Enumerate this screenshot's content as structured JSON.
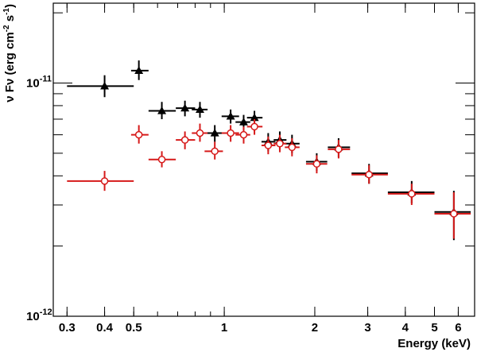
{
  "chart_data": {
    "type": "scatter",
    "title": "",
    "xlabel": "Energy (keV)",
    "ylabel_main": "ν Fν (erg cm",
    "ylabel_exp1": "-2",
    "ylabel_mid": " s",
    "ylabel_exp2": "-1",
    "ylabel_end": ")",
    "x_scale": "log",
    "y_scale": "log",
    "xlim": [
      0.27,
      6.8
    ],
    "ylim": [
      1e-12,
      2.2e-11
    ],
    "x_ticks": [
      {
        "value": 0.3,
        "label": "0.3"
      },
      {
        "value": 0.4,
        "label": "0.4"
      },
      {
        "value": 0.5,
        "label": "0.5"
      },
      {
        "value": 1,
        "label": "1"
      },
      {
        "value": 2,
        "label": "2"
      },
      {
        "value": 3,
        "label": "3"
      },
      {
        "value": 4,
        "label": "4"
      },
      {
        "value": 5,
        "label": "5"
      },
      {
        "value": 6,
        "label": "6"
      }
    ],
    "y_ticks": [
      {
        "value": 1e-12,
        "base": "10",
        "exp": "-12"
      },
      {
        "value": 1e-11,
        "base": "10",
        "exp": "-11"
      }
    ],
    "grid": false,
    "legend": "none",
    "series": [
      {
        "marker": "triangle-filled",
        "color": "#000000",
        "points": [
          {
            "x": 0.4,
            "xlo": 0.3,
            "xhi": 0.5,
            "y": 9.7e-12,
            "ylo": 8.7e-12,
            "yhi": 1.08e-11
          },
          {
            "x": 0.52,
            "xlo": 0.49,
            "xhi": 0.56,
            "y": 1.13e-11,
            "ylo": 1.03e-11,
            "yhi": 1.25e-11
          },
          {
            "x": 0.62,
            "xlo": 0.56,
            "xhi": 0.69,
            "y": 7.6e-12,
            "ylo": 7e-12,
            "yhi": 8.3e-12
          },
          {
            "x": 0.74,
            "xlo": 0.69,
            "xhi": 0.8,
            "y": 7.8e-12,
            "ylo": 7.2e-12,
            "yhi": 8.4e-12
          },
          {
            "x": 0.83,
            "xlo": 0.78,
            "xhi": 0.88,
            "y": 7.7e-12,
            "ylo": 7.1e-12,
            "yhi": 8.3e-12
          },
          {
            "x": 0.93,
            "xlo": 0.86,
            "xhi": 0.99,
            "y": 6.1e-12,
            "ylo": 5.6e-12,
            "yhi": 6.6e-12
          },
          {
            "x": 1.05,
            "xlo": 0.98,
            "xhi": 1.12,
            "y": 7.2e-12,
            "ylo": 6.7e-12,
            "yhi": 7.7e-12
          },
          {
            "x": 1.16,
            "xlo": 1.09,
            "xhi": 1.22,
            "y": 6.8e-12,
            "ylo": 6.3e-12,
            "yhi": 7.3e-12
          },
          {
            "x": 1.26,
            "xlo": 1.19,
            "xhi": 1.34,
            "y": 7.1e-12,
            "ylo": 6.6e-12,
            "yhi": 7.6e-12
          },
          {
            "x": 1.4,
            "xlo": 1.33,
            "xhi": 1.48,
            "y": 5.6e-12,
            "ylo": 5.1e-12,
            "yhi": 6.1e-12
          },
          {
            "x": 1.53,
            "xlo": 1.46,
            "xhi": 1.61,
            "y": 5.7e-12,
            "ylo": 5.2e-12,
            "yhi": 6.2e-12
          },
          {
            "x": 1.68,
            "xlo": 1.59,
            "xhi": 1.78,
            "y": 5.5e-12,
            "ylo": 5e-12,
            "yhi": 6e-12
          },
          {
            "x": 2.03,
            "xlo": 1.87,
            "xhi": 2.2,
            "y": 4.6e-12,
            "ylo": 4.2e-12,
            "yhi": 5e-12
          },
          {
            "x": 2.4,
            "xlo": 2.21,
            "xhi": 2.62,
            "y": 5.3e-12,
            "ylo": 4.8e-12,
            "yhi": 5.8e-12
          },
          {
            "x": 3.03,
            "xlo": 2.65,
            "xhi": 3.5,
            "y": 4.1e-12,
            "ylo": 3.7e-12,
            "yhi": 4.5e-12
          },
          {
            "x": 4.2,
            "xlo": 3.5,
            "xhi": 5.0,
            "y": 3.4e-12,
            "ylo": 3.05e-12,
            "yhi": 3.8e-12
          },
          {
            "x": 5.8,
            "xlo": 5.0,
            "xhi": 6.6,
            "y": 2.8e-12,
            "ylo": 2.12e-12,
            "yhi": 3.45e-12
          }
        ]
      },
      {
        "marker": "circle-open",
        "color": "#d61a1a",
        "points": [
          {
            "x": 0.4,
            "xlo": 0.3,
            "xhi": 0.5,
            "y": 3.8e-12,
            "ylo": 3.45e-12,
            "yhi": 4.2e-12
          },
          {
            "x": 0.52,
            "xlo": 0.49,
            "xhi": 0.56,
            "y": 6e-12,
            "ylo": 5.5e-12,
            "yhi": 6.6e-12
          },
          {
            "x": 0.62,
            "xlo": 0.56,
            "xhi": 0.69,
            "y": 4.7e-12,
            "ylo": 4.35e-12,
            "yhi": 5.1e-12
          },
          {
            "x": 0.74,
            "xlo": 0.69,
            "xhi": 0.8,
            "y": 5.7e-12,
            "ylo": 5.2e-12,
            "yhi": 6.2e-12
          },
          {
            "x": 0.83,
            "xlo": 0.78,
            "xhi": 0.88,
            "y": 6.1e-12,
            "ylo": 5.6e-12,
            "yhi": 6.7e-12
          },
          {
            "x": 0.93,
            "xlo": 0.86,
            "xhi": 0.99,
            "y": 5.1e-12,
            "ylo": 4.7e-12,
            "yhi": 5.6e-12
          },
          {
            "x": 1.05,
            "xlo": 0.98,
            "xhi": 1.12,
            "y": 6.1e-12,
            "ylo": 5.6e-12,
            "yhi": 6.6e-12
          },
          {
            "x": 1.16,
            "xlo": 1.09,
            "xhi": 1.22,
            "y": 6e-12,
            "ylo": 5.5e-12,
            "yhi": 6.5e-12
          },
          {
            "x": 1.26,
            "xlo": 1.19,
            "xhi": 1.34,
            "y": 6.5e-12,
            "ylo": 6e-12,
            "yhi": 7e-12
          },
          {
            "x": 1.4,
            "xlo": 1.33,
            "xhi": 1.48,
            "y": 5.4e-12,
            "ylo": 4.95e-12,
            "yhi": 5.9e-12
          },
          {
            "x": 1.53,
            "xlo": 1.46,
            "xhi": 1.61,
            "y": 5.5e-12,
            "ylo": 5.05e-12,
            "yhi": 6e-12
          },
          {
            "x": 1.68,
            "xlo": 1.59,
            "xhi": 1.78,
            "y": 5.3e-12,
            "ylo": 4.85e-12,
            "yhi": 5.8e-12
          },
          {
            "x": 2.03,
            "xlo": 1.87,
            "xhi": 2.2,
            "y": 4.5e-12,
            "ylo": 4.1e-12,
            "yhi": 4.9e-12
          },
          {
            "x": 2.4,
            "xlo": 2.21,
            "xhi": 2.62,
            "y": 5.2e-12,
            "ylo": 4.75e-12,
            "yhi": 5.7e-12
          },
          {
            "x": 3.03,
            "xlo": 2.65,
            "xhi": 3.5,
            "y": 4.05e-12,
            "ylo": 3.7e-12,
            "yhi": 4.45e-12
          },
          {
            "x": 4.2,
            "xlo": 3.5,
            "xhi": 5.0,
            "y": 3.35e-12,
            "ylo": 3e-12,
            "yhi": 3.7e-12
          },
          {
            "x": 5.8,
            "xlo": 5.0,
            "xhi": 6.6,
            "y": 2.75e-12,
            "ylo": 2.15e-12,
            "yhi": 3.4e-12
          }
        ]
      }
    ]
  }
}
